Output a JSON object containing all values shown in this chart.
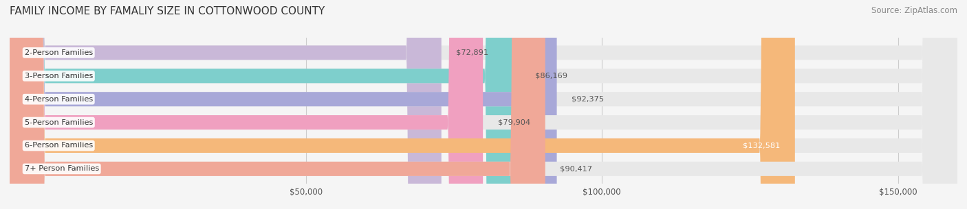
{
  "title": "FAMILY INCOME BY FAMALIY SIZE IN COTTONWOOD COUNTY",
  "source": "Source: ZipAtlas.com",
  "categories": [
    "2-Person Families",
    "3-Person Families",
    "4-Person Families",
    "5-Person Families",
    "6-Person Families",
    "7+ Person Families"
  ],
  "values": [
    72891,
    86169,
    92375,
    79904,
    132581,
    90417
  ],
  "bar_colors": [
    "#c9b8d8",
    "#7ecfcc",
    "#a8a8d8",
    "#f0a0c0",
    "#f5b87a",
    "#f0a898"
  ],
  "label_colors": [
    "#555555",
    "#555555",
    "#555555",
    "#555555",
    "#ffffff",
    "#555555"
  ],
  "value_labels": [
    "$72,891",
    "$86,169",
    "$92,375",
    "$79,904",
    "$132,581",
    "$90,417"
  ],
  "xlim": [
    0,
    160000
  ],
  "xticks": [
    0,
    50000,
    100000,
    150000
  ],
  "xticklabels": [
    "",
    "$50,000",
    "$100,000",
    "$150,000"
  ],
  "background_color": "#f5f5f5",
  "bar_bg_color": "#e8e8e8",
  "title_fontsize": 11,
  "source_fontsize": 8.5,
  "bar_height": 0.62,
  "figsize": [
    14.06,
    3.05
  ]
}
